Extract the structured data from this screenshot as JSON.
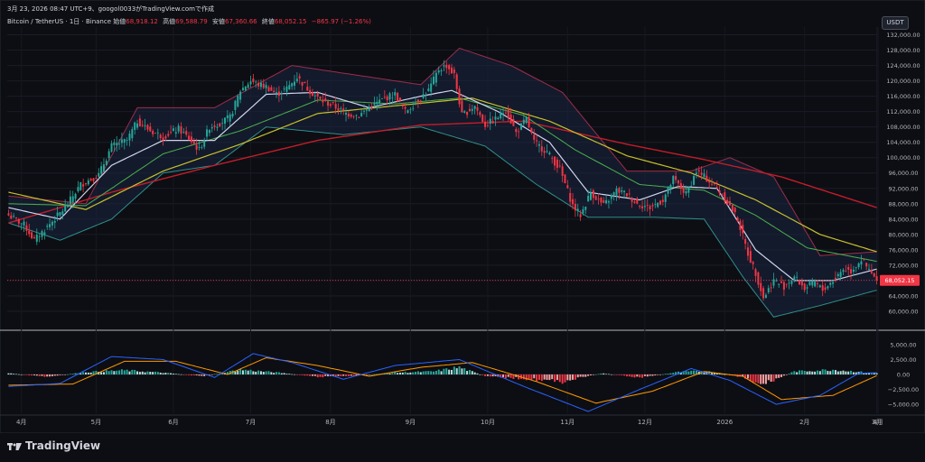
{
  "header": {
    "info": "3月 23, 2026 08:47 UTC+9、googol0033がTradingView.comで作成",
    "symbol": "Bitcoin / TetherUS · 1日 · Binance",
    "open_label": "始値",
    "open": "68,918.12",
    "high_label": "高値",
    "high": "69,588.79",
    "low_label": "安値",
    "low": "67,360.66",
    "close_label": "終値",
    "close": "68,052.15",
    "change": "−865.97 (−1.26%)"
  },
  "currency": "USDT",
  "brand": "TradingView",
  "colors": {
    "background": "#0d0e13",
    "up": "#26a69a",
    "down": "#f23645",
    "ma_fast": "#d1d4f0",
    "ma_mid": "#4caf50",
    "ma_slow": "#c7c02e",
    "ma_long": "#c21d2a",
    "bb_band": "#9c2d4a",
    "bb_fill": "#1a2440",
    "macd_line": "#2962ff",
    "signal_line": "#ff9800",
    "last_price_bg": "#f23645"
  },
  "chart_data": [
    {
      "type": "candlestick",
      "title": "Bitcoin / TetherUS · 1日 · Binance",
      "x_ticks": [
        "4月",
        "5月",
        "6月",
        "7月",
        "8月",
        "9月",
        "10月",
        "11月",
        "12月",
        "2026",
        "2月",
        "3月",
        "4月"
      ],
      "y_ticks": [
        "132,000.00",
        "128,000.00",
        "124,000.00",
        "120,000.00",
        "116,000.00",
        "112,000.00",
        "108,000.00",
        "104,000.00",
        "100,000.00",
        "96,000.00",
        "92,000.00",
        "88,000.00",
        "84,000.00",
        "80,000.00",
        "76,000.00",
        "72,000.00",
        "68,000.00",
        "64,000.00",
        "60,000.00"
      ],
      "ylim": [
        56000,
        134000
      ],
      "last_price": "68,052.15",
      "close_path": [
        [
          0,
          85000
        ],
        [
          6,
          82500
        ],
        [
          10,
          78500
        ],
        [
          15,
          82000
        ],
        [
          22,
          87000
        ],
        [
          28,
          93000
        ],
        [
          35,
          95500
        ],
        [
          40,
          103000
        ],
        [
          46,
          104500
        ],
        [
          50,
          109500
        ],
        [
          55,
          107000
        ],
        [
          60,
          105500
        ],
        [
          66,
          107500
        ],
        [
          70,
          105000
        ],
        [
          74,
          102000
        ],
        [
          78,
          108000
        ],
        [
          82,
          109000
        ],
        [
          86,
          110500
        ],
        [
          90,
          117500
        ],
        [
          94,
          120000
        ],
        [
          97,
          119000
        ],
        [
          100,
          118500
        ],
        [
          104,
          116500
        ],
        [
          108,
          118000
        ],
        [
          112,
          121000
        ],
        [
          116,
          118000
        ],
        [
          121,
          115000
        ],
        [
          126,
          113500
        ],
        [
          131,
          111500
        ],
        [
          136,
          111000
        ],
        [
          140,
          113000
        ],
        [
          146,
          115500
        ],
        [
          150,
          116500
        ],
        [
          154,
          112000
        ],
        [
          159,
          115000
        ],
        [
          163,
          117500
        ],
        [
          167,
          123000
        ],
        [
          170,
          124000
        ],
        [
          173,
          121500
        ],
        [
          176,
          111000
        ],
        [
          181,
          113500
        ],
        [
          185,
          108500
        ],
        [
          189,
          110000
        ],
        [
          193,
          112500
        ],
        [
          197,
          106500
        ],
        [
          201,
          110000
        ],
        [
          204,
          104000
        ],
        [
          209,
          101500
        ],
        [
          214,
          97000
        ],
        [
          219,
          87500
        ],
        [
          222,
          85000
        ],
        [
          226,
          91000
        ],
        [
          231,
          87500
        ],
        [
          236,
          91500
        ],
        [
          240,
          90500
        ],
        [
          244,
          88000
        ],
        [
          249,
          87000
        ],
        [
          254,
          89000
        ],
        [
          258,
          94500
        ],
        [
          263,
          90500
        ],
        [
          267,
          96500
        ],
        [
          271,
          94500
        ],
        [
          275,
          92000
        ],
        [
          279,
          88500
        ],
        [
          283,
          84000
        ],
        [
          287,
          75000
        ],
        [
          290,
          70000
        ],
        [
          293,
          63500
        ],
        [
          297,
          68000
        ],
        [
          301,
          66500
        ],
        [
          305,
          69000
        ],
        [
          309,
          66000
        ],
        [
          313,
          67500
        ],
        [
          316,
          65500
        ],
        [
          320,
          68000
        ],
        [
          324,
          71000
        ],
        [
          327,
          70500
        ],
        [
          331,
          73500
        ],
        [
          334,
          70500
        ],
        [
          337,
          68052
        ]
      ],
      "indicators": {
        "ma_fast_path": [
          [
            0,
            87000
          ],
          [
            20,
            84000
          ],
          [
            40,
            98000
          ],
          [
            60,
            104500
          ],
          [
            80,
            104500
          ],
          [
            100,
            116500
          ],
          [
            120,
            117000
          ],
          [
            140,
            113000
          ],
          [
            160,
            116000
          ],
          [
            172,
            117500
          ],
          [
            190,
            112000
          ],
          [
            210,
            104000
          ],
          [
            225,
            91000
          ],
          [
            245,
            89000
          ],
          [
            260,
            92500
          ],
          [
            275,
            92000
          ],
          [
            290,
            76000
          ],
          [
            305,
            68000
          ],
          [
            320,
            68000
          ],
          [
            337,
            71000
          ]
        ],
        "ma_mid_path": [
          [
            0,
            88000
          ],
          [
            30,
            87500
          ],
          [
            60,
            101000
          ],
          [
            90,
            107000
          ],
          [
            120,
            115000
          ],
          [
            150,
            114000
          ],
          [
            175,
            115500
          ],
          [
            200,
            111000
          ],
          [
            220,
            102000
          ],
          [
            245,
            93000
          ],
          [
            270,
            91500
          ],
          [
            290,
            85000
          ],
          [
            310,
            76500
          ],
          [
            337,
            73000
          ]
        ],
        "ma_slow_path": [
          [
            0,
            91000
          ],
          [
            30,
            86500
          ],
          [
            60,
            96500
          ],
          [
            90,
            103500
          ],
          [
            120,
            111500
          ],
          [
            150,
            113500
          ],
          [
            180,
            115500
          ],
          [
            210,
            109500
          ],
          [
            240,
            100500
          ],
          [
            265,
            96000
          ],
          [
            290,
            89000
          ],
          [
            315,
            80000
          ],
          [
            337,
            75500
          ]
        ],
        "ma_long_path": [
          [
            0,
            83000
          ],
          [
            40,
            91000
          ],
          [
            80,
            98000
          ],
          [
            120,
            104500
          ],
          [
            160,
            108500
          ],
          [
            200,
            109500
          ],
          [
            240,
            103500
          ],
          [
            270,
            99500
          ],
          [
            300,
            95000
          ],
          [
            337,
            87000
          ]
        ],
        "bb_upper_path": [
          [
            0,
            90000
          ],
          [
            30,
            88000
          ],
          [
            50,
            113000
          ],
          [
            80,
            113000
          ],
          [
            110,
            124000
          ],
          [
            140,
            121000
          ],
          [
            160,
            119000
          ],
          [
            175,
            128500
          ],
          [
            195,
            124000
          ],
          [
            215,
            117000
          ],
          [
            240,
            96500
          ],
          [
            265,
            96500
          ],
          [
            280,
            100000
          ],
          [
            297,
            95000
          ],
          [
            315,
            74500
          ],
          [
            337,
            75500
          ]
        ],
        "bb_lower_path": [
          [
            0,
            83000
          ],
          [
            20,
            78500
          ],
          [
            40,
            84000
          ],
          [
            60,
            96000
          ],
          [
            80,
            98000
          ],
          [
            100,
            108000
          ],
          [
            130,
            106000
          ],
          [
            160,
            108000
          ],
          [
            185,
            103000
          ],
          [
            205,
            93000
          ],
          [
            225,
            84500
          ],
          [
            250,
            84500
          ],
          [
            270,
            84000
          ],
          [
            285,
            69000
          ],
          [
            297,
            58500
          ],
          [
            315,
            61500
          ],
          [
            337,
            65500
          ]
        ]
      }
    },
    {
      "type": "histogram",
      "title": "MACD",
      "y_ticks": [
        "5,000.00",
        "2,500.00",
        "0.00",
        "−2,500.00",
        "−5,000.00"
      ],
      "ylim": [
        -6500,
        6500
      ],
      "histogram_path": [
        [
          0,
          200
        ],
        [
          15,
          -400
        ],
        [
          30,
          400
        ],
        [
          45,
          700
        ],
        [
          60,
          300
        ],
        [
          75,
          -300
        ],
        [
          90,
          800
        ],
        [
          105,
          300
        ],
        [
          120,
          -400
        ],
        [
          135,
          -200
        ],
        [
          150,
          300
        ],
        [
          165,
          500
        ],
        [
          175,
          1200
        ],
        [
          185,
          -300
        ],
        [
          200,
          -700
        ],
        [
          215,
          -1200
        ],
        [
          230,
          200
        ],
        [
          245,
          -500
        ],
        [
          260,
          400
        ],
        [
          270,
          600
        ],
        [
          285,
          -500
        ],
        [
          292,
          -1800
        ],
        [
          305,
          500
        ],
        [
          320,
          800
        ],
        [
          337,
          200
        ]
      ],
      "macd_path": [
        [
          0,
          -2000
        ],
        [
          20,
          -1500
        ],
        [
          40,
          3000
        ],
        [
          60,
          2500
        ],
        [
          80,
          -500
        ],
        [
          95,
          3500
        ],
        [
          110,
          2000
        ],
        [
          130,
          -800
        ],
        [
          150,
          1500
        ],
        [
          175,
          2500
        ],
        [
          200,
          -2000
        ],
        [
          225,
          -6200
        ],
        [
          245,
          -2500
        ],
        [
          265,
          1000
        ],
        [
          280,
          -1000
        ],
        [
          298,
          -5000
        ],
        [
          315,
          -3500
        ],
        [
          330,
          200
        ],
        [
          337,
          300
        ]
      ],
      "signal_path": [
        [
          0,
          -1800
        ],
        [
          25,
          -1600
        ],
        [
          45,
          2200
        ],
        [
          65,
          2200
        ],
        [
          85,
          0
        ],
        [
          100,
          2800
        ],
        [
          120,
          1500
        ],
        [
          140,
          -300
        ],
        [
          160,
          1200
        ],
        [
          180,
          2000
        ],
        [
          205,
          -1200
        ],
        [
          228,
          -4800
        ],
        [
          250,
          -2800
        ],
        [
          270,
          500
        ],
        [
          285,
          -300
        ],
        [
          300,
          -4200
        ],
        [
          320,
          -3500
        ],
        [
          337,
          -200
        ]
      ]
    }
  ]
}
